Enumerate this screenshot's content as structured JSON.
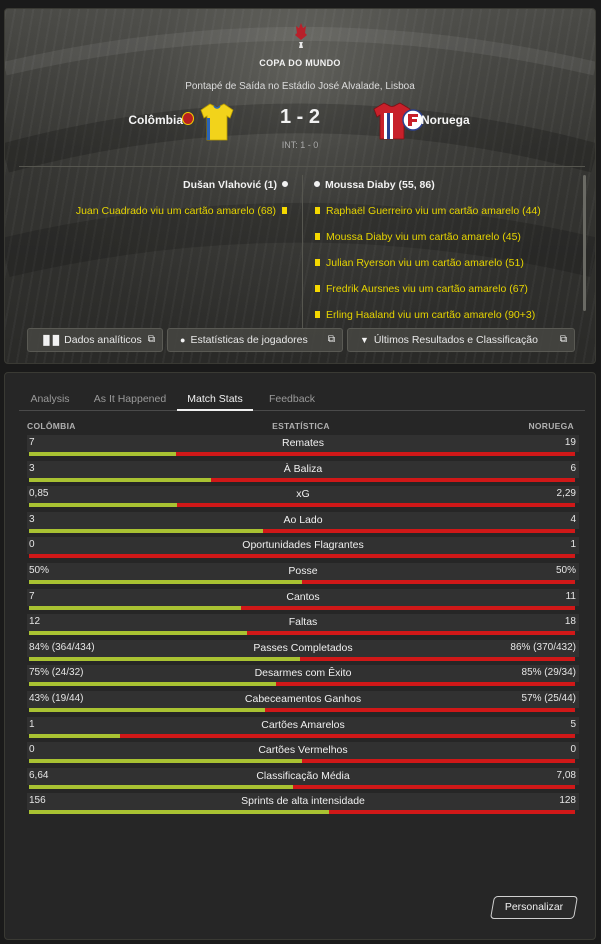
{
  "header": {
    "competition": "COPA DO MUNDO",
    "venue": "Pontapé de Saída no Estádio José Alvalade, Lisboa",
    "home_team": "Colômbia",
    "away_team": "Noruega",
    "score": "1 - 2",
    "half_time": "INT: 1 - 0",
    "colors": {
      "home_shirt": "#f2d31b",
      "away_shirt_red": "#c8202a",
      "away_shirt_blue": "#2b3f8f",
      "card": "#f5d800"
    }
  },
  "events": {
    "home": [
      {
        "type": "goal",
        "text": "Dušan Vlahović (1)",
        "icon": "football-icon"
      },
      {
        "type": "card",
        "text": "Juan Cuadrado viu um cartão amarelo (68)",
        "icon": "yellow-card-icon"
      }
    ],
    "away": [
      {
        "type": "goal",
        "text": "Moussa Diaby (55, 86)",
        "icon": "football-icon"
      },
      {
        "type": "card",
        "text": "Raphaël Guerreiro viu um cartão amarelo (44)",
        "icon": "yellow-card-icon"
      },
      {
        "type": "card",
        "text": "Moussa Diaby viu um cartão amarelo (45)",
        "icon": "yellow-card-icon"
      },
      {
        "type": "card",
        "text": "Julian Ryerson viu um cartão amarelo (51)",
        "icon": "yellow-card-icon"
      },
      {
        "type": "card",
        "text": "Fredrik Aursnes viu um cartão amarelo (67)",
        "icon": "yellow-card-icon"
      },
      {
        "type": "card",
        "text": "Erling Haaland viu um cartão amarelo (90+3)",
        "icon": "yellow-card-icon"
      }
    ]
  },
  "header_buttons": [
    {
      "label": "Dados analíticos",
      "icon": "bar-chart-icon"
    },
    {
      "label": "Estatísticas de jogadores",
      "icon": "person-icon"
    },
    {
      "label": "Últimos Resultados e Classificação",
      "icon": "trophy-icon"
    }
  ],
  "tabs": [
    "Analysis",
    "As It Happened",
    "Match Stats",
    "Feedback"
  ],
  "active_tab": "Match Stats",
  "stats_header": {
    "home": "COLÔMBIA",
    "label": "ESTATÍSTICA",
    "away": "NORUEGA"
  },
  "stats": [
    {
      "label": "Remates",
      "home": "7",
      "away": "19",
      "home_share": 0.27
    },
    {
      "label": "À Baliza",
      "home": "3",
      "away": "6",
      "home_share": 0.333
    },
    {
      "label": "xG",
      "home": "0,85",
      "away": "2,29",
      "home_share": 0.271
    },
    {
      "label": "Ao Lado",
      "home": "3",
      "away": "4",
      "home_share": 0.429
    },
    {
      "label": "Oportunidades Flagrantes",
      "home": "0",
      "away": "1",
      "home_share": 0
    },
    {
      "label": "Posse",
      "home": "50%",
      "away": "50%",
      "home_share": 0.5
    },
    {
      "label": "Cantos",
      "home": "7",
      "away": "11",
      "home_share": 0.389
    },
    {
      "label": "Faltas",
      "home": "12",
      "away": "18",
      "home_share": 0.4
    },
    {
      "label": "Passes Completados",
      "home": "84% (364/434)",
      "away": "86% (370/432)",
      "home_share": 0.496
    },
    {
      "label": "Desarmes com Êxito",
      "home": "75% (24/32)",
      "away": "85% (29/34)",
      "home_share": 0.453
    },
    {
      "label": "Cabeceamentos Ganhos",
      "home": "43% (19/44)",
      "away": "57% (25/44)",
      "home_share": 0.432
    },
    {
      "label": "Cartões Amarelos",
      "home": "1",
      "away": "5",
      "home_share": 0.167
    },
    {
      "label": "Cartões Vermelhos",
      "home": "0",
      "away": "0",
      "home_share": 0.5
    },
    {
      "label": "Classificação Média",
      "home": "6,64",
      "away": "7,08",
      "home_share": 0.484
    },
    {
      "label": "Sprints de alta intensidade",
      "home": "156",
      "away": "128",
      "home_share": 0.549
    }
  ],
  "customize_label": "Personalizar"
}
